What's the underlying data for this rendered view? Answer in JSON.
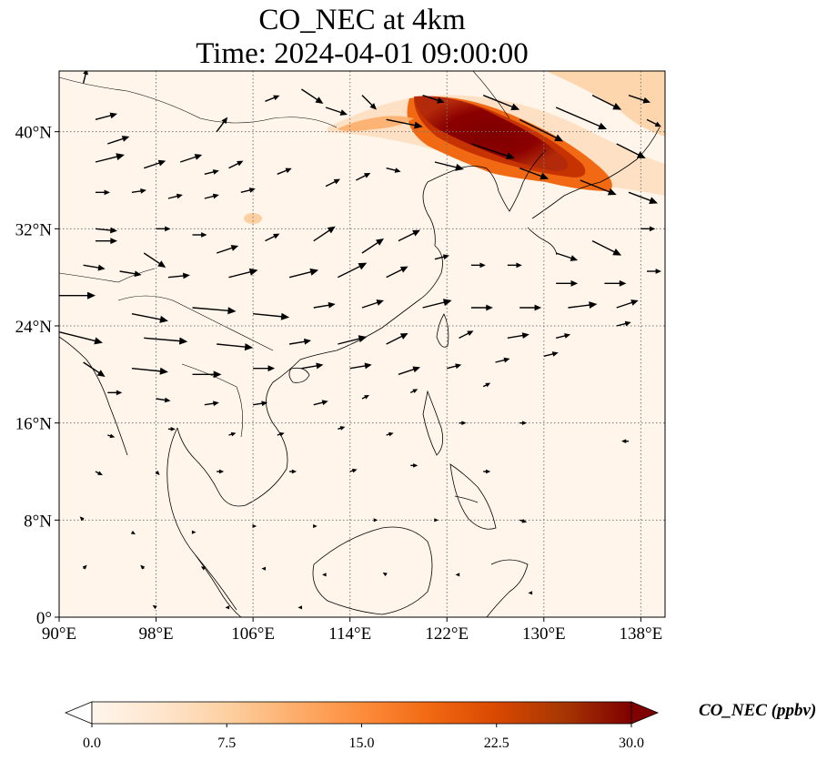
{
  "title": {
    "line1": "CO_NEC at 4km",
    "line2": "Time: 2024-04-01 09:00:00"
  },
  "map": {
    "lon_range": [
      90,
      140
    ],
    "lat_range": [
      0,
      45
    ],
    "lon_ticks": [
      {
        "value": 90,
        "label": "90°E"
      },
      {
        "value": 98,
        "label": "98°E"
      },
      {
        "value": 106,
        "label": "106°E"
      },
      {
        "value": 114,
        "label": "114°E"
      },
      {
        "value": 122,
        "label": "122°E"
      },
      {
        "value": 130,
        "label": "130°E"
      },
      {
        "value": 138,
        "label": "138°E"
      }
    ],
    "lat_ticks": [
      {
        "value": 0,
        "label": "0°"
      },
      {
        "value": 8,
        "label": "8°N"
      },
      {
        "value": 16,
        "label": "16°N"
      },
      {
        "value": 24,
        "label": "24°N"
      },
      {
        "value": 32,
        "label": "32°N"
      },
      {
        "value": 40,
        "label": "40°N"
      }
    ],
    "gridlines": true,
    "gridline_style": "dotted",
    "background_color": "#fff5eb",
    "coastline_color": "#000000",
    "plume_color_high": "#800000",
    "plume_color_mid": "#e04a1a",
    "plume_color_low": "#fdbf86"
  },
  "colorbar": {
    "label": "CO_NEC (ppbv)",
    "min": 0.0,
    "max": 30.0,
    "extend": "both",
    "ticks": [
      {
        "value": 0.0,
        "label": "0.0"
      },
      {
        "value": 7.5,
        "label": "7.5"
      },
      {
        "value": 15.0,
        "label": "15.0"
      },
      {
        "value": 22.5,
        "label": "22.5"
      },
      {
        "value": 30.0,
        "label": "30.0"
      }
    ],
    "colormap": "OrRd",
    "stops": [
      "#fff5eb",
      "#fee6ce",
      "#fdd0a2",
      "#fdae6b",
      "#fd8d3c",
      "#f16913",
      "#d94801",
      "#a63603",
      "#7f0000"
    ]
  },
  "wind_vectors": [
    {
      "lon": 92,
      "lat": 44,
      "u": 0.5,
      "v": 2
    },
    {
      "lon": 93,
      "lat": 41,
      "u": 3,
      "v": 0.8
    },
    {
      "lon": 94,
      "lat": 39,
      "u": 3,
      "v": 1
    },
    {
      "lon": 93,
      "lat": 37.5,
      "u": 4,
      "v": 1
    },
    {
      "lon": 97,
      "lat": 37,
      "u": 3,
      "v": 1
    },
    {
      "lon": 100,
      "lat": 37.5,
      "u": 3,
      "v": 1
    },
    {
      "lon": 102,
      "lat": 36.5,
      "u": 2,
      "v": 0.5
    },
    {
      "lon": 104,
      "lat": 37,
      "u": 2,
      "v": 1
    },
    {
      "lon": 108,
      "lat": 36.5,
      "u": 2,
      "v": 0.8
    },
    {
      "lon": 103,
      "lat": 40,
      "u": 1.5,
      "v": 2
    },
    {
      "lon": 107,
      "lat": 42.5,
      "u": 2,
      "v": 0.8
    },
    {
      "lon": 110,
      "lat": 43.5,
      "u": 3,
      "v": -2
    },
    {
      "lon": 112,
      "lat": 42,
      "u": 3,
      "v": -1
    },
    {
      "lon": 115,
      "lat": 43,
      "u": 2,
      "v": -2
    },
    {
      "lon": 117,
      "lat": 41,
      "u": 5,
      "v": -1
    },
    {
      "lon": 120,
      "lat": 43,
      "u": 3,
      "v": -1
    },
    {
      "lon": 125,
      "lat": 43,
      "u": 5,
      "v": -2
    },
    {
      "lon": 128,
      "lat": 41,
      "u": 6,
      "v": -3
    },
    {
      "lon": 131,
      "lat": 42,
      "u": 7,
      "v": -3
    },
    {
      "lon": 134,
      "lat": 43,
      "u": 4,
      "v": -2
    },
    {
      "lon": 137,
      "lat": 43,
      "u": 3,
      "v": -1
    },
    {
      "lon": 138.5,
      "lat": 41,
      "u": 2,
      "v": -1
    },
    {
      "lon": 136,
      "lat": 39,
      "u": 4,
      "v": -2
    },
    {
      "lon": 124,
      "lat": 39,
      "u": 6,
      "v": -2
    },
    {
      "lon": 121,
      "lat": 37.5,
      "u": 4,
      "v": -1
    },
    {
      "lon": 128,
      "lat": 37,
      "u": 4,
      "v": -1.5
    },
    {
      "lon": 133,
      "lat": 36,
      "u": 5,
      "v": -2
    },
    {
      "lon": 137,
      "lat": 35,
      "u": 4,
      "v": -1.5
    },
    {
      "lon": 93,
      "lat": 35,
      "u": 2,
      "v": 0
    },
    {
      "lon": 96,
      "lat": 35,
      "u": 2,
      "v": 0.3
    },
    {
      "lon": 99,
      "lat": 34.5,
      "u": 2,
      "v": 0.5
    },
    {
      "lon": 102,
      "lat": 34.5,
      "u": 2,
      "v": 0.5
    },
    {
      "lon": 105,
      "lat": 35,
      "u": 2,
      "v": 0.5
    },
    {
      "lon": 112,
      "lat": 35.5,
      "u": 2,
      "v": 1
    },
    {
      "lon": 114.5,
      "lat": 36,
      "u": 2,
      "v": 1
    },
    {
      "lon": 117,
      "lat": 37,
      "u": 2,
      "v": -0.5
    },
    {
      "lon": 98,
      "lat": 32,
      "u": 2,
      "v": 0
    },
    {
      "lon": 101,
      "lat": 31.5,
      "u": 2,
      "v": 0
    },
    {
      "lon": 93,
      "lat": 32,
      "u": 3,
      "v": -0.3
    },
    {
      "lon": 93,
      "lat": 31,
      "u": 3,
      "v": 0
    },
    {
      "lon": 97,
      "lat": 30,
      "u": 3,
      "v": -2
    },
    {
      "lon": 103,
      "lat": 30,
      "u": 3,
      "v": 1
    },
    {
      "lon": 107,
      "lat": 31,
      "u": 2,
      "v": 1
    },
    {
      "lon": 111,
      "lat": 31,
      "u": 3,
      "v": 2
    },
    {
      "lon": 115,
      "lat": 30,
      "u": 3,
      "v": 2
    },
    {
      "lon": 118,
      "lat": 31,
      "u": 3,
      "v": 1.5
    },
    {
      "lon": 121,
      "lat": 29.5,
      "u": 2,
      "v": 0.5
    },
    {
      "lon": 124,
      "lat": 29,
      "u": 2,
      "v": 0
    },
    {
      "lon": 127,
      "lat": 29,
      "u": 2,
      "v": 0
    },
    {
      "lon": 131,
      "lat": 30,
      "u": 3,
      "v": -1
    },
    {
      "lon": 134,
      "lat": 31,
      "u": 4,
      "v": -2
    },
    {
      "lon": 138,
      "lat": 32,
      "u": 2,
      "v": 0
    },
    {
      "lon": 92,
      "lat": 29,
      "u": 3,
      "v": -0.5
    },
    {
      "lon": 95,
      "lat": 28.5,
      "u": 3,
      "v": -0.5
    },
    {
      "lon": 99,
      "lat": 28,
      "u": 3,
      "v": 0.3
    },
    {
      "lon": 104,
      "lat": 28,
      "u": 4,
      "v": 1
    },
    {
      "lon": 109,
      "lat": 28,
      "u": 4,
      "v": 1
    },
    {
      "lon": 113,
      "lat": 28,
      "u": 4,
      "v": 2
    },
    {
      "lon": 117,
      "lat": 28,
      "u": 3,
      "v": 1.5
    },
    {
      "lon": 131,
      "lat": 27.5,
      "u": 3,
      "v": 0
    },
    {
      "lon": 135,
      "lat": 27.5,
      "u": 3,
      "v": 0
    },
    {
      "lon": 138.5,
      "lat": 28.5,
      "u": 2,
      "v": 0
    },
    {
      "lon": 90,
      "lat": 26.5,
      "u": 5,
      "v": 0
    },
    {
      "lon": 96,
      "lat": 25,
      "u": 5,
      "v": -1
    },
    {
      "lon": 101,
      "lat": 25.5,
      "u": 6,
      "v": -0.5
    },
    {
      "lon": 106,
      "lat": 25,
      "u": 5,
      "v": -0.5
    },
    {
      "lon": 111,
      "lat": 25.5,
      "u": 3,
      "v": 0.5
    },
    {
      "lon": 115,
      "lat": 25.5,
      "u": 3,
      "v": 1
    },
    {
      "lon": 120,
      "lat": 25.5,
      "u": 4,
      "v": 1
    },
    {
      "lon": 124,
      "lat": 25.5,
      "u": 3,
      "v": 0
    },
    {
      "lon": 128,
      "lat": 25.5,
      "u": 3,
      "v": 0
    },
    {
      "lon": 132,
      "lat": 25.5,
      "u": 4,
      "v": 0.5
    },
    {
      "lon": 136,
      "lat": 25.5,
      "u": 3,
      "v": 1
    },
    {
      "lon": 90,
      "lat": 23.5,
      "u": 6,
      "v": -1.5
    },
    {
      "lon": 97,
      "lat": 23,
      "u": 6,
      "v": -0.5
    },
    {
      "lon": 103,
      "lat": 22.5,
      "u": 5,
      "v": -0.5
    },
    {
      "lon": 109,
      "lat": 22.5,
      "u": 3,
      "v": 0.5
    },
    {
      "lon": 113,
      "lat": 22.5,
      "u": 4,
      "v": 1
    },
    {
      "lon": 117,
      "lat": 22.5,
      "u": 3,
      "v": 1.5
    },
    {
      "lon": 123,
      "lat": 23,
      "u": 2,
      "v": 1
    },
    {
      "lon": 127,
      "lat": 23,
      "u": 3,
      "v": 0.5
    },
    {
      "lon": 131,
      "lat": 23,
      "u": 2,
      "v": 0.5
    },
    {
      "lon": 136,
      "lat": 24,
      "u": 2,
      "v": 0.5
    },
    {
      "lon": 92,
      "lat": 21,
      "u": 3,
      "v": -2
    },
    {
      "lon": 96,
      "lat": 20.5,
      "u": 5,
      "v": -0.5
    },
    {
      "lon": 101,
      "lat": 20,
      "u": 4,
      "v": 0
    },
    {
      "lon": 106,
      "lat": 20.5,
      "u": 3,
      "v": 0
    },
    {
      "lon": 110,
      "lat": 20.5,
      "u": 3,
      "v": 0.5
    },
    {
      "lon": 114,
      "lat": 20.5,
      "u": 3,
      "v": 0.5
    },
    {
      "lon": 118,
      "lat": 20,
      "u": 3,
      "v": 1
    },
    {
      "lon": 122,
      "lat": 20.5,
      "u": 2,
      "v": 0.5
    },
    {
      "lon": 126,
      "lat": 21,
      "u": 2,
      "v": 0.5
    },
    {
      "lon": 130,
      "lat": 21.5,
      "u": 2,
      "v": 0.5
    },
    {
      "lon": 94,
      "lat": 18.5,
      "u": 2,
      "v": 0
    },
    {
      "lon": 98,
      "lat": 18,
      "u": 2,
      "v": -0.3
    },
    {
      "lon": 102,
      "lat": 17.5,
      "u": 2,
      "v": 0.3
    },
    {
      "lon": 106,
      "lat": 17.5,
      "u": 2,
      "v": 0.3
    },
    {
      "lon": 111,
      "lat": 17.5,
      "u": 2,
      "v": 0.5
    },
    {
      "lon": 115,
      "lat": 18,
      "u": 1,
      "v": 0.5
    },
    {
      "lon": 119,
      "lat": 18.5,
      "u": 1,
      "v": 0.5
    },
    {
      "lon": 125,
      "lat": 19,
      "u": 1,
      "v": 0.5
    },
    {
      "lon": 94,
      "lat": 15,
      "u": 1,
      "v": -0.3
    },
    {
      "lon": 99,
      "lat": 15.5,
      "u": 1,
      "v": 0
    },
    {
      "lon": 104,
      "lat": 15,
      "u": 1,
      "v": 0.3
    },
    {
      "lon": 108,
      "lat": 15,
      "u": 1,
      "v": 0.3
    },
    {
      "lon": 113,
      "lat": 15.5,
      "u": 1,
      "v": 0.3
    },
    {
      "lon": 117,
      "lat": 15,
      "u": 1,
      "v": 0.3
    },
    {
      "lon": 123,
      "lat": 16,
      "u": 1,
      "v": 0
    },
    {
      "lon": 128,
      "lat": 16,
      "u": 1,
      "v": 0
    },
    {
      "lon": 137,
      "lat": 14.5,
      "u": -1,
      "v": 0
    },
    {
      "lon": 93,
      "lat": 12,
      "u": 1,
      "v": -0.5
    },
    {
      "lon": 98,
      "lat": 12,
      "u": 0.5,
      "v": -0.5
    },
    {
      "lon": 103,
      "lat": 12,
      "u": 1,
      "v": 0
    },
    {
      "lon": 109,
      "lat": 12,
      "u": 1,
      "v": 0
    },
    {
      "lon": 114,
      "lat": 12,
      "u": 1,
      "v": 0.3
    },
    {
      "lon": 119,
      "lat": 12.5,
      "u": 1,
      "v": 0
    },
    {
      "lon": 125,
      "lat": 12,
      "u": 1,
      "v": 0
    },
    {
      "lon": 128,
      "lat": 8,
      "u": 1,
      "v": -0.3
    },
    {
      "lon": 92,
      "lat": 8,
      "u": -0.5,
      "v": 0.5
    },
    {
      "lon": 96,
      "lat": 7,
      "u": 0.5,
      "v": -0.3
    },
    {
      "lon": 101,
      "lat": 7,
      "u": 0.5,
      "v": 0
    },
    {
      "lon": 106,
      "lat": 7.5,
      "u": 0.5,
      "v": 0
    },
    {
      "lon": 111,
      "lat": 7.5,
      "u": 0.5,
      "v": 0
    },
    {
      "lon": 116,
      "lat": 8,
      "u": 0.5,
      "v": 0
    },
    {
      "lon": 121,
      "lat": 8,
      "u": 0.5,
      "v": 0
    },
    {
      "lon": 92,
      "lat": 4,
      "u": 0.5,
      "v": 0.5
    },
    {
      "lon": 97,
      "lat": 4,
      "u": -0.5,
      "v": 0.5
    },
    {
      "lon": 102,
      "lat": 4,
      "u": -0.5,
      "v": 0.3
    },
    {
      "lon": 107,
      "lat": 4,
      "u": -0.5,
      "v": 0
    },
    {
      "lon": 112,
      "lat": 3.5,
      "u": -0.5,
      "v": 0
    },
    {
      "lon": 117,
      "lat": 3.5,
      "u": -0.5,
      "v": 0.3
    },
    {
      "lon": 123,
      "lat": 3.5,
      "u": -0.5,
      "v": 0
    },
    {
      "lon": 129,
      "lat": 2,
      "u": -0.5,
      "v": 0
    },
    {
      "lon": 98,
      "lat": 0.8,
      "u": -0.5,
      "v": 0.3
    },
    {
      "lon": 104,
      "lat": 0.8,
      "u": -0.5,
      "v": 0
    },
    {
      "lon": 110,
      "lat": 0.8,
      "u": -0.5,
      "v": 0
    }
  ]
}
